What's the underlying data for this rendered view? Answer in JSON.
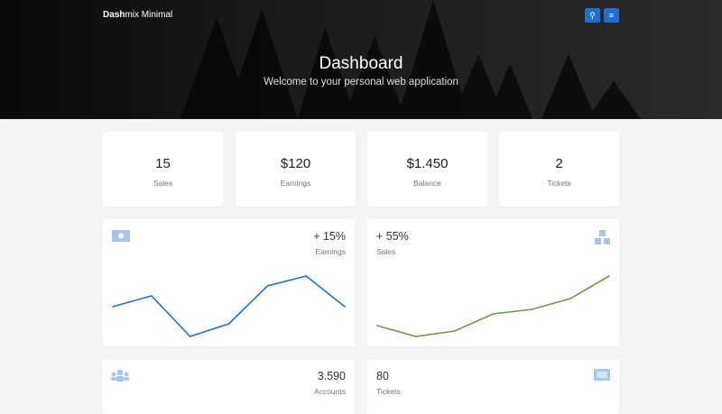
{
  "header": {
    "brand_bold": "Dash",
    "brand_rest": "mix Minimal",
    "title": "Dashboard",
    "subtitle": "Welcome to your personal web application",
    "search_icon": "search-icon",
    "menu_icon": "menu-icon"
  },
  "stats": [
    {
      "value": "15",
      "label": "Sales"
    },
    {
      "value": "$120",
      "label": "Earnings"
    },
    {
      "value": "$1.450",
      "label": "Balance"
    },
    {
      "value": "2",
      "label": "Tickets"
    }
  ],
  "widgets": {
    "earnings": {
      "value": "+ 15%",
      "label": "Earnings",
      "icon": "money-bill-icon",
      "color": "#1f6fd1"
    },
    "sales": {
      "value": "+ 55%",
      "label": "Sales",
      "icon": "boxes-icon",
      "color": "#6b9a4b"
    },
    "accounts": {
      "value": "3.590",
      "label": "Accounts",
      "icon": "users-icon"
    },
    "tickets": {
      "value": "80",
      "label": "Tickets",
      "icon": "ticket-icon"
    }
  },
  "chart_data": [
    {
      "type": "line",
      "series": [
        {
          "values": [
            33,
            45,
            0,
            14,
            56,
            67,
            33
          ]
        }
      ]
    },
    {
      "type": "line",
      "series": [
        {
          "values": [
            12,
            0,
            6,
            25,
            30,
            42,
            67
          ]
        }
      ]
    }
  ]
}
